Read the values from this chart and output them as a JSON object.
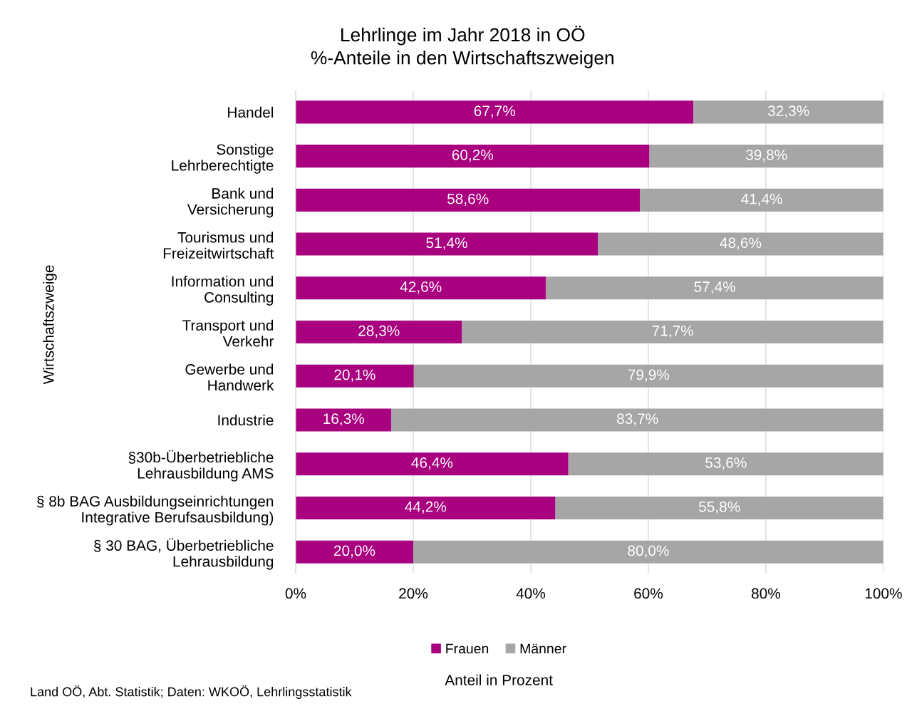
{
  "chart_data": {
    "type": "bar",
    "orientation": "horizontal",
    "stacked": true,
    "title": "Lehrlinge im Jahr 2018 in OÖ\n%-Anteile in den Wirtschaftszweigen",
    "ylabel": "Wirtschaftszweige",
    "categories": [
      "Handel",
      "Sonstige\nLehrberechtigte",
      "Bank und\nVersicherung",
      "Tourismus und\nFreizeitwirtschaft",
      "Information und\nConsulting",
      "Transport und\nVerkehr",
      "Gewerbe und\nHandwerk",
      "Industrie",
      "§30b-Überbetriebliche\nLehrausbildung AMS",
      "§ 8b BAG Ausbildungseinrichtungen\nIntegrative Berufsausbildung)",
      "§ 30 BAG, Überbetriebliche\nLehrausbildung"
    ],
    "series": [
      {
        "name": "Frauen",
        "color": "#a8007f",
        "values": [
          67.7,
          60.2,
          58.6,
          51.4,
          42.6,
          28.3,
          20.1,
          16.3,
          46.4,
          44.2,
          20.0
        ],
        "value_labels": [
          "67,7%",
          "60,2%",
          "58,6%",
          "51,4%",
          "42,6%",
          "28,3%",
          "20,1%",
          "16,3%",
          "46,4%",
          "44,2%",
          "20,0%"
        ]
      },
      {
        "name": "Männer",
        "color": "#a6a6a6",
        "values": [
          32.3,
          39.8,
          41.4,
          48.6,
          57.4,
          71.7,
          79.9,
          83.7,
          53.6,
          55.8,
          80.0
        ],
        "value_labels": [
          "32,3%",
          "39,8%",
          "41,4%",
          "48,6%",
          "57,4%",
          "71,7%",
          "79,9%",
          "83,7%",
          "53,6%",
          "55,8%",
          "80,0%"
        ]
      }
    ],
    "xlim": [
      0,
      100
    ],
    "xticks": [
      {
        "value": 0,
        "label": "0%"
      },
      {
        "value": 20,
        "label": "20%"
      },
      {
        "value": 40,
        "label": "40%"
      },
      {
        "value": 60,
        "label": "60%"
      },
      {
        "value": 80,
        "label": "80%"
      },
      {
        "value": 100,
        "label": "100%"
      }
    ],
    "grid": "x",
    "legend": "bottom",
    "annotations": [
      "Anteil in Prozent",
      "Land OÖ, Abt. Statistik; Daten: WKOÖ, Lehrlingsstatistik"
    ]
  }
}
